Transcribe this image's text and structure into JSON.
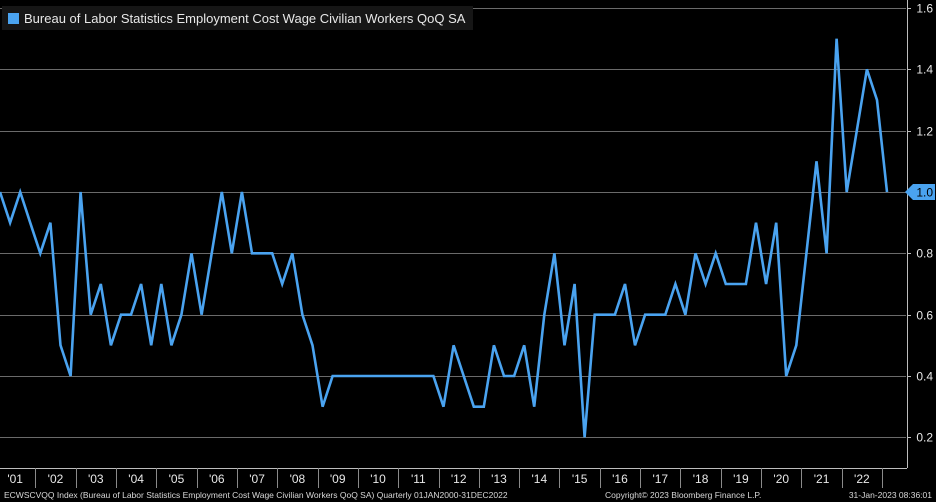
{
  "legend": {
    "label": "Bureau of Labor Statistics Employment Cost Wage Civilian Workers QoQ SA",
    "color": "#4aa3f0"
  },
  "footer": {
    "source": "ECWSCVQQ Index (Bureau of Labor Statistics Employment Cost Wage Civilian Workers QoQ SA)  Quarterly 01JAN2000-31DEC2022",
    "copyright": "Copyright© 2023 Bloomberg Finance L.P.",
    "timestamp": "31-Jan-2023 08:36:01"
  },
  "last_value_label": "1.0",
  "colors": {
    "background": "#000000",
    "line": "#4aa3f0",
    "grid": "#6a6a6a",
    "text": "#e8e8e8"
  },
  "chart_data": {
    "type": "line",
    "title": "",
    "xlabel": "",
    "ylabel": "",
    "ylim": [
      0.1,
      1.6
    ],
    "yticks": [
      0.2,
      0.4,
      0.6,
      0.8,
      1.0,
      1.2,
      1.4,
      1.6
    ],
    "y_axis_side": "right",
    "grid": "horizontal",
    "legend_position": "top-left",
    "x_tick_labels": [
      "'01",
      "'02",
      "'03",
      "'04",
      "'05",
      "'06",
      "'07",
      "'08",
      "'09",
      "'10",
      "'11",
      "'12",
      "'13",
      "'14",
      "'15",
      "'16",
      "'17",
      "'18",
      "'19",
      "'20",
      "'21",
      "'22"
    ],
    "series": [
      {
        "name": "Bureau of Labor Statistics Employment Cost Wage Civilian Workers QoQ SA",
        "start": "2000-Q4",
        "frequency": "quarterly",
        "values": [
          1.0,
          0.9,
          1.0,
          0.9,
          0.8,
          0.9,
          0.5,
          0.4,
          1.0,
          0.6,
          0.7,
          0.5,
          0.6,
          0.6,
          0.7,
          0.5,
          0.7,
          0.5,
          0.6,
          0.8,
          0.6,
          0.8,
          1.0,
          0.8,
          1.0,
          0.8,
          0.8,
          0.8,
          0.7,
          0.8,
          0.6,
          0.5,
          0.3,
          0.4,
          0.4,
          0.4,
          0.4,
          0.4,
          0.4,
          0.4,
          0.4,
          0.4,
          0.4,
          0.4,
          0.3,
          0.5,
          0.4,
          0.3,
          0.3,
          0.5,
          0.4,
          0.4,
          0.5,
          0.3,
          0.6,
          0.8,
          0.5,
          0.7,
          0.2,
          0.6,
          0.6,
          0.6,
          0.7,
          0.5,
          0.6,
          0.6,
          0.6,
          0.7,
          0.6,
          0.8,
          0.7,
          0.8,
          0.7,
          0.7,
          0.7,
          0.9,
          0.7,
          0.9,
          0.4,
          0.5,
          0.8,
          1.1,
          0.8,
          1.5,
          1.0,
          1.2,
          1.4,
          1.3,
          1.0
        ]
      }
    ]
  }
}
